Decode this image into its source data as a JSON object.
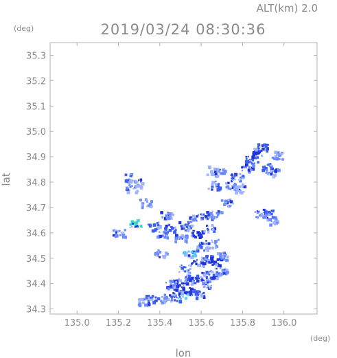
{
  "header": {
    "altitude_label": "ALT(km) 2.0",
    "timestamp": "2019/03/24 08:30:36"
  },
  "chart_data": {
    "type": "heatmap",
    "title": "2019/03/24 08:30:36",
    "subtitle": "ALT(km) 2.0",
    "xlabel": "lon",
    "ylabel": "lat",
    "x_unit": "(deg)",
    "y_unit": "(deg)",
    "xlim": [
      134.87,
      136.16
    ],
    "ylim": [
      34.28,
      35.35
    ],
    "x_ticks": [
      135.0,
      135.2,
      135.4,
      135.6,
      135.8,
      136.0
    ],
    "x_tick_labels": [
      "135.0",
      "135.2",
      "135.4",
      "135.6",
      "135.8",
      "136.0"
    ],
    "y_ticks": [
      34.3,
      34.4,
      34.5,
      34.6,
      34.7,
      34.8,
      34.9,
      35.0,
      35.1,
      35.2,
      35.3
    ],
    "y_tick_labels": [
      "34.3",
      "34.4",
      "34.5",
      "34.6",
      "34.7",
      "34.8",
      "34.9",
      "35.0",
      "35.1",
      "35.2",
      "35.3"
    ],
    "grid": false,
    "colors": {
      "weak": "#9fb4ff",
      "light": "#6f8cff",
      "moderate": "#3f5ff2",
      "strong": "#2236d8",
      "cyan": "#55c8ff",
      "teal": "#32d8c8",
      "frame": "#b0b0b0"
    },
    "echo_cells": [
      {
        "lon": 135.47,
        "lat": 34.35,
        "level": "moderate"
      },
      {
        "lon": 135.52,
        "lat": 34.36,
        "level": "cyan"
      },
      {
        "lon": 135.55,
        "lat": 34.37,
        "level": "strong"
      },
      {
        "lon": 135.58,
        "lat": 34.36,
        "level": "moderate"
      },
      {
        "lon": 135.43,
        "lat": 34.345,
        "level": "light"
      },
      {
        "lon": 135.36,
        "lat": 34.34,
        "level": "moderate"
      },
      {
        "lon": 135.32,
        "lat": 34.33,
        "level": "light"
      },
      {
        "lon": 135.5,
        "lat": 34.41,
        "level": "strong"
      },
      {
        "lon": 135.55,
        "lat": 34.42,
        "level": "moderate"
      },
      {
        "lon": 135.6,
        "lat": 34.43,
        "level": "strong"
      },
      {
        "lon": 135.65,
        "lat": 34.44,
        "level": "moderate"
      },
      {
        "lon": 135.69,
        "lat": 34.45,
        "level": "light"
      },
      {
        "lon": 135.45,
        "lat": 34.4,
        "level": "light"
      },
      {
        "lon": 135.52,
        "lat": 34.46,
        "level": "moderate"
      },
      {
        "lon": 135.58,
        "lat": 34.48,
        "level": "strong"
      },
      {
        "lon": 135.62,
        "lat": 34.5,
        "level": "moderate"
      },
      {
        "lon": 135.67,
        "lat": 34.49,
        "level": "strong"
      },
      {
        "lon": 135.7,
        "lat": 34.51,
        "level": "light"
      },
      {
        "lon": 135.54,
        "lat": 34.52,
        "level": "cyan"
      },
      {
        "lon": 135.6,
        "lat": 34.55,
        "level": "moderate"
      },
      {
        "lon": 135.65,
        "lat": 34.56,
        "level": "light"
      },
      {
        "lon": 135.57,
        "lat": 34.6,
        "level": "strong"
      },
      {
        "lon": 135.63,
        "lat": 34.62,
        "level": "moderate"
      },
      {
        "lon": 135.52,
        "lat": 34.63,
        "level": "moderate"
      },
      {
        "lon": 135.56,
        "lat": 34.66,
        "level": "light"
      },
      {
        "lon": 135.62,
        "lat": 34.67,
        "level": "moderate"
      },
      {
        "lon": 135.67,
        "lat": 34.68,
        "level": "light"
      },
      {
        "lon": 135.5,
        "lat": 34.58,
        "level": "light"
      },
      {
        "lon": 135.45,
        "lat": 34.62,
        "level": "moderate"
      },
      {
        "lon": 135.4,
        "lat": 34.52,
        "level": "light"
      },
      {
        "lon": 135.41,
        "lat": 34.6,
        "level": "light"
      },
      {
        "lon": 135.37,
        "lat": 34.63,
        "level": "moderate"
      },
      {
        "lon": 135.28,
        "lat": 34.64,
        "level": "teal"
      },
      {
        "lon": 135.2,
        "lat": 34.6,
        "level": "light"
      },
      {
        "lon": 135.43,
        "lat": 34.67,
        "level": "light"
      },
      {
        "lon": 135.26,
        "lat": 34.78,
        "level": "light"
      },
      {
        "lon": 135.26,
        "lat": 34.82,
        "level": "moderate"
      },
      {
        "lon": 135.28,
        "lat": 34.8,
        "level": "weak"
      },
      {
        "lon": 135.33,
        "lat": 34.72,
        "level": "light"
      },
      {
        "lon": 135.66,
        "lat": 34.79,
        "level": "moderate"
      },
      {
        "lon": 135.68,
        "lat": 34.84,
        "level": "light"
      },
      {
        "lon": 135.65,
        "lat": 34.85,
        "level": "weak"
      },
      {
        "lon": 135.74,
        "lat": 34.79,
        "level": "light"
      },
      {
        "lon": 135.77,
        "lat": 34.82,
        "level": "moderate"
      },
      {
        "lon": 135.82,
        "lat": 34.86,
        "level": "light"
      },
      {
        "lon": 135.84,
        "lat": 34.89,
        "level": "moderate"
      },
      {
        "lon": 135.87,
        "lat": 34.92,
        "level": "strong"
      },
      {
        "lon": 135.89,
        "lat": 34.94,
        "level": "moderate"
      },
      {
        "lon": 135.92,
        "lat": 34.86,
        "level": "moderate"
      },
      {
        "lon": 135.94,
        "lat": 34.84,
        "level": "light"
      },
      {
        "lon": 135.97,
        "lat": 34.91,
        "level": "light"
      },
      {
        "lon": 135.93,
        "lat": 34.68,
        "level": "moderate"
      },
      {
        "lon": 135.94,
        "lat": 34.65,
        "level": "light"
      },
      {
        "lon": 135.88,
        "lat": 34.68,
        "level": "light"
      },
      {
        "lon": 135.72,
        "lat": 34.72,
        "level": "light"
      },
      {
        "lon": 135.79,
        "lat": 34.78,
        "level": "weak"
      },
      {
        "lon": 135.49,
        "lat": 34.38,
        "level": "strong"
      },
      {
        "lon": 135.62,
        "lat": 34.4,
        "level": "light"
      }
    ]
  }
}
